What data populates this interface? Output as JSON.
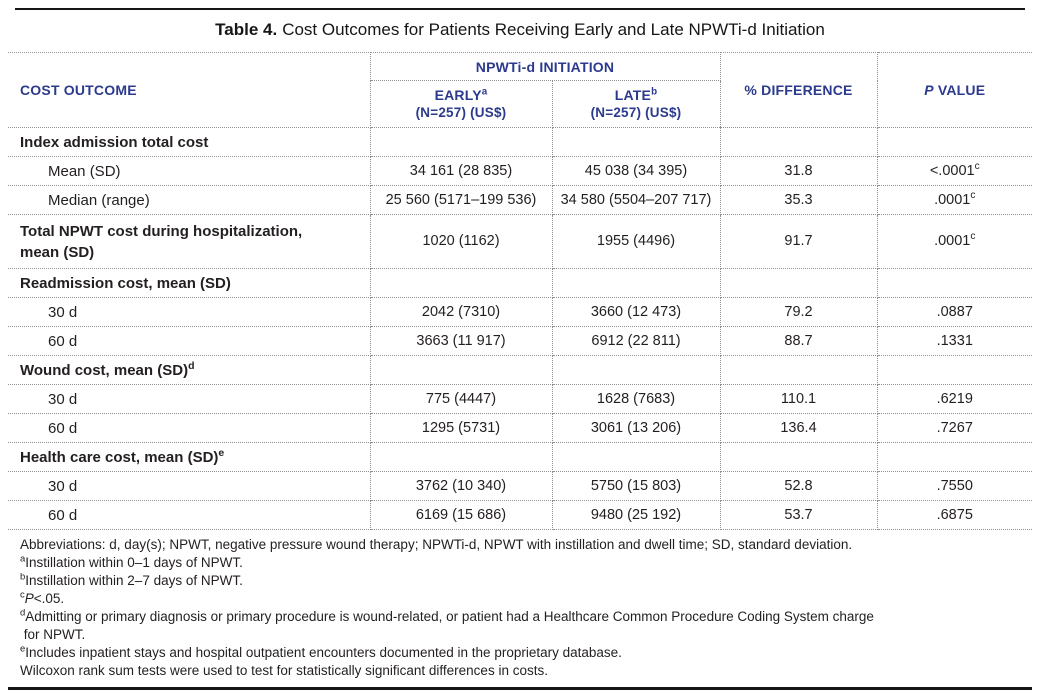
{
  "title": {
    "label": "Table 4.",
    "text": "Cost Outcomes for Patients Receiving Early and Late NPWTi-d Initiation"
  },
  "table": {
    "headers": {
      "cost_outcome": "COST OUTCOME",
      "group": "NPWTi-d INITIATION",
      "early_name": "EARLY",
      "early_sup": "a",
      "early_n": "(N=257) (US$)",
      "late_name": "LATE",
      "late_sup": "b",
      "late_n": "(N=257) (US$)",
      "pct_diff": "% DIFFERENCE",
      "p_italic": "P",
      "p_rest": " VALUE"
    },
    "rows": [
      {
        "label": "Index admission total cost",
        "section": true,
        "early": "",
        "late": "",
        "diff": "",
        "p": ""
      },
      {
        "label": "Mean (SD)",
        "early": "34 161 (28 835)",
        "late": "45 038 (34 395)",
        "diff": "31.8",
        "p": "<.0001",
        "p_sup": "c"
      },
      {
        "label": "Median (range)",
        "early": "25 560 (5171–199 536)",
        "late": "34 580 (5504–207 717)",
        "diff": "35.3",
        "p": ".0001",
        "p_sup": "c"
      },
      {
        "label": "Total NPWT cost during hospitalization,",
        "label2": "mean (SD)",
        "section": true,
        "tall": true,
        "early": "1020 (1162)",
        "late": "1955 (4496)",
        "diff": "91.7",
        "p": ".0001",
        "p_sup": "c"
      },
      {
        "label": "Readmission cost, mean (SD)",
        "section": true,
        "early": "",
        "late": "",
        "diff": "",
        "p": ""
      },
      {
        "label": "30 d",
        "early": "2042 (7310)",
        "late": "3660 (12 473)",
        "diff": "79.2",
        "p": ".0887"
      },
      {
        "label": "60 d",
        "early": "3663 (11 917)",
        "late": "6912 (22 811)",
        "diff": "88.7",
        "p": ".1331"
      },
      {
        "label": "Wound cost, mean (SD)",
        "sup": "d",
        "section": true,
        "early": "",
        "late": "",
        "diff": "",
        "p": ""
      },
      {
        "label": "30 d",
        "early": "775 (4447)",
        "late": "1628 (7683)",
        "diff": "110.1",
        "p": ".6219"
      },
      {
        "label": "60 d",
        "early": "1295 (5731)",
        "late": "3061 (13 206)",
        "diff": "136.4",
        "p": ".7267"
      },
      {
        "label": "Health care cost, mean (SD)",
        "sup": "e",
        "section": true,
        "early": "",
        "late": "",
        "diff": "",
        "p": ""
      },
      {
        "label": "30 d",
        "early": "3762 (10 340)",
        "late": "5750 (15 803)",
        "diff": "52.8",
        "p": ".7550"
      },
      {
        "label": "60 d",
        "early": "6169 (15 686)",
        "late": "9480 (25 192)",
        "diff": "53.7",
        "p": ".6875"
      }
    ]
  },
  "footnotes": [
    {
      "text": "Abbreviations: d, day(s); NPWT, negative pressure wound therapy; NPWTi-d, NPWT with instillation and dwell time; SD, standard deviation."
    },
    {
      "sup": "a",
      "text": "Instillation within 0–1 days of NPWT."
    },
    {
      "sup": "b",
      "text": "Instillation within 2–7 days of NPWT."
    },
    {
      "sup": "c",
      "italic": "P",
      "text": "<.05."
    },
    {
      "sup": "d",
      "text": "Admitting or primary diagnosis or primary procedure is wound-related, or patient had a Healthcare Common Procedure Coding System charge",
      "text2": "for NPWT."
    },
    {
      "sup": "e",
      "text": "Includes inpatient stays and hospital outpatient encounters documented in the proprietary database."
    },
    {
      "text": "Wilcoxon rank sum tests were used to test for statistically significant differences in costs."
    }
  ],
  "colors": {
    "header_navy": "#2b3a8c",
    "body_text": "#231f20",
    "dotted_border": "#8f8f8f",
    "rule": "#161616"
  }
}
